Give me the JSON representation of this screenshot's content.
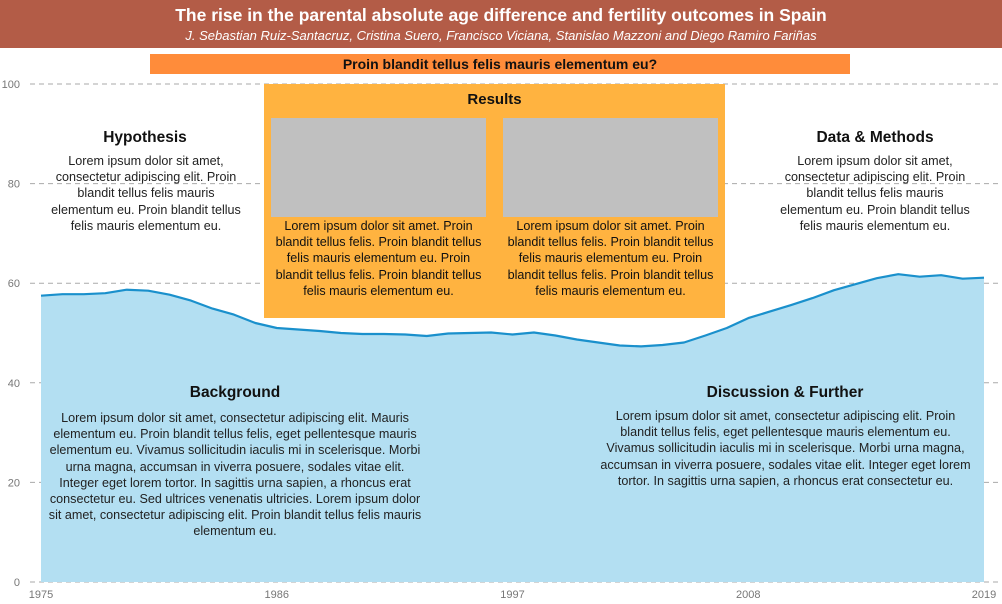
{
  "header": {
    "title": "The rise in the parental absolute age difference and fertility outcomes in Spain",
    "authors": "J. Sebastian Ruiz-Santacruz, Cristina Suero, Francisco Viciana, Stanislao Mazzoni and Diego Ramiro Fariñas",
    "background_color": "#b35c47"
  },
  "question": {
    "text": "Proin blandit tellus felis mauris elementum eu?",
    "color": "#ff8c3a"
  },
  "sections": {
    "hypothesis": {
      "title": "Hypothesis",
      "text": "Lorem ipsum dolor sit amet, consectetur adipiscing elit. Proin blandit tellus felis mauris elementum eu. Proin blandit tellus felis mauris elementum eu."
    },
    "data_methods": {
      "title": "Data & Methods",
      "text": "Lorem ipsum dolor sit amet, consectetur adipiscing elit. Proin blandit tellus felis mauris elementum eu. Proin blandit tellus felis mauris elementum eu."
    },
    "results": {
      "title": "Results",
      "color": "#ffb340",
      "panels": [
        {
          "text": "Lorem ipsum dolor sit amet. Proin blandit tellus felis. Proin blandit tellus felis mauris elementum eu. Proin blandit tellus felis. Proin blandit tellus felis mauris elementum eu."
        },
        {
          "text": "Lorem ipsum dolor sit amet. Proin blandit tellus felis. Proin blandit tellus felis mauris elementum eu. Proin blandit tellus felis. Proin blandit tellus felis mauris elementum eu."
        }
      ]
    },
    "background": {
      "title": "Background",
      "text": "Lorem ipsum dolor sit amet, consectetur adipiscing elit. Mauris elementum eu. Proin blandit tellus felis, eget pellentesque mauris elementum eu. Vivamus sollicitudin iaculis mi in scelerisque. Morbi urna magna, accumsan in viverra posuere, sodales vitae elit. Integer eget lorem tortor. In sagittis urna sapien, a rhoncus erat consectetur eu. Sed ultrices venenatis ultricies. Lorem ipsum dolor sit amet, consectetur adipiscing elit. Proin blandit tellus felis mauris elementum eu."
    },
    "discussion": {
      "title": "Discussion & Further",
      "text": "Lorem ipsum dolor sit amet, consectetur adipiscing elit. Proin blandit tellus felis, eget pellentesque mauris elementum eu. Vivamus sollicitudin iaculis mi in scelerisque. Morbi urna magna, accumsan in viverra posuere, sodales vitae elit. Integer eget lorem tortor. In sagittis urna sapien, a rhoncus erat consectetur eu."
    }
  },
  "chart_data": {
    "type": "area",
    "title": "",
    "xlabel": "",
    "ylabel": "",
    "x": [
      1975,
      1976,
      1977,
      1978,
      1979,
      1980,
      1981,
      1982,
      1983,
      1984,
      1985,
      1986,
      1987,
      1988,
      1989,
      1990,
      1991,
      1992,
      1993,
      1994,
      1995,
      1996,
      1997,
      1998,
      1999,
      2000,
      2001,
      2002,
      2003,
      2004,
      2005,
      2006,
      2007,
      2008,
      2009,
      2010,
      2011,
      2012,
      2013,
      2014,
      2015,
      2016,
      2017,
      2018,
      2019
    ],
    "series": [
      {
        "values": [
          57.5,
          57.8,
          57.8,
          58.0,
          58.7,
          58.5,
          57.7,
          56.5,
          54.9,
          53.7,
          52.0,
          51.0,
          50.7,
          50.4,
          50.0,
          49.8,
          49.8,
          49.7,
          49.4,
          49.9,
          50.0,
          50.1,
          49.7,
          50.1,
          49.5,
          48.7,
          48.1,
          47.5,
          47.3,
          47.6,
          48.1,
          49.5,
          51.0,
          53.0,
          54.3,
          55.6,
          57.0,
          58.6,
          59.8,
          61.0,
          61.8,
          61.3,
          61.6,
          60.9,
          61.1
        ]
      }
    ],
    "xticks": [
      "1975",
      "1986",
      "1997",
      "2008",
      "2019"
    ],
    "yticks": [
      "0",
      "20",
      "40",
      "60",
      "80",
      "100"
    ],
    "xlim": [
      1975,
      2019
    ],
    "ylim": [
      0,
      100
    ],
    "grid": "horizontal dashed",
    "line_color": "#1a90cc",
    "fill_color": "#b3dff2"
  }
}
